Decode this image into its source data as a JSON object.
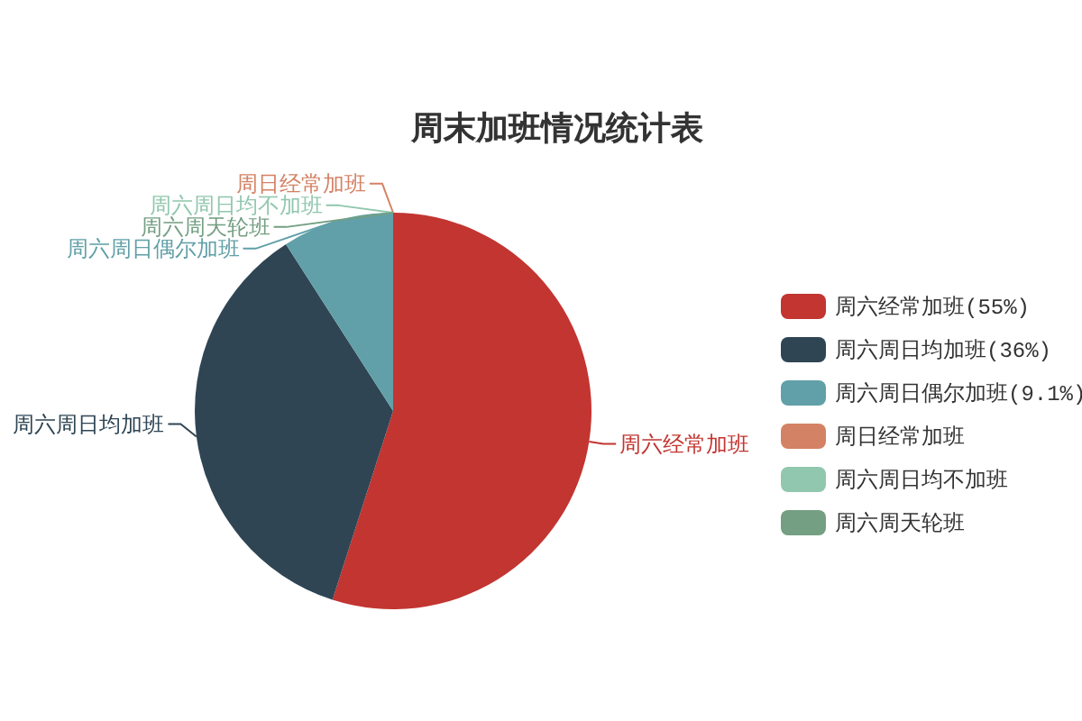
{
  "chart_data": {
    "type": "pie",
    "title": "周末加班情况统计表",
    "categories": [
      "周六经常加班",
      "周六周日均加班",
      "周六周日偶尔加班",
      "周日经常加班",
      "周六周日均不加班",
      "周六周天轮班"
    ],
    "values": [
      55,
      36,
      9.1,
      0,
      0,
      0
    ],
    "colors": [
      "#c23531",
      "#2f4554",
      "#61a0a8",
      "#d48265",
      "#91c7ae",
      "#749f83"
    ],
    "value_labels": [
      "(55%)",
      "(36%)",
      "(9.1%)",
      null,
      null,
      null
    ],
    "legend": "right"
  }
}
